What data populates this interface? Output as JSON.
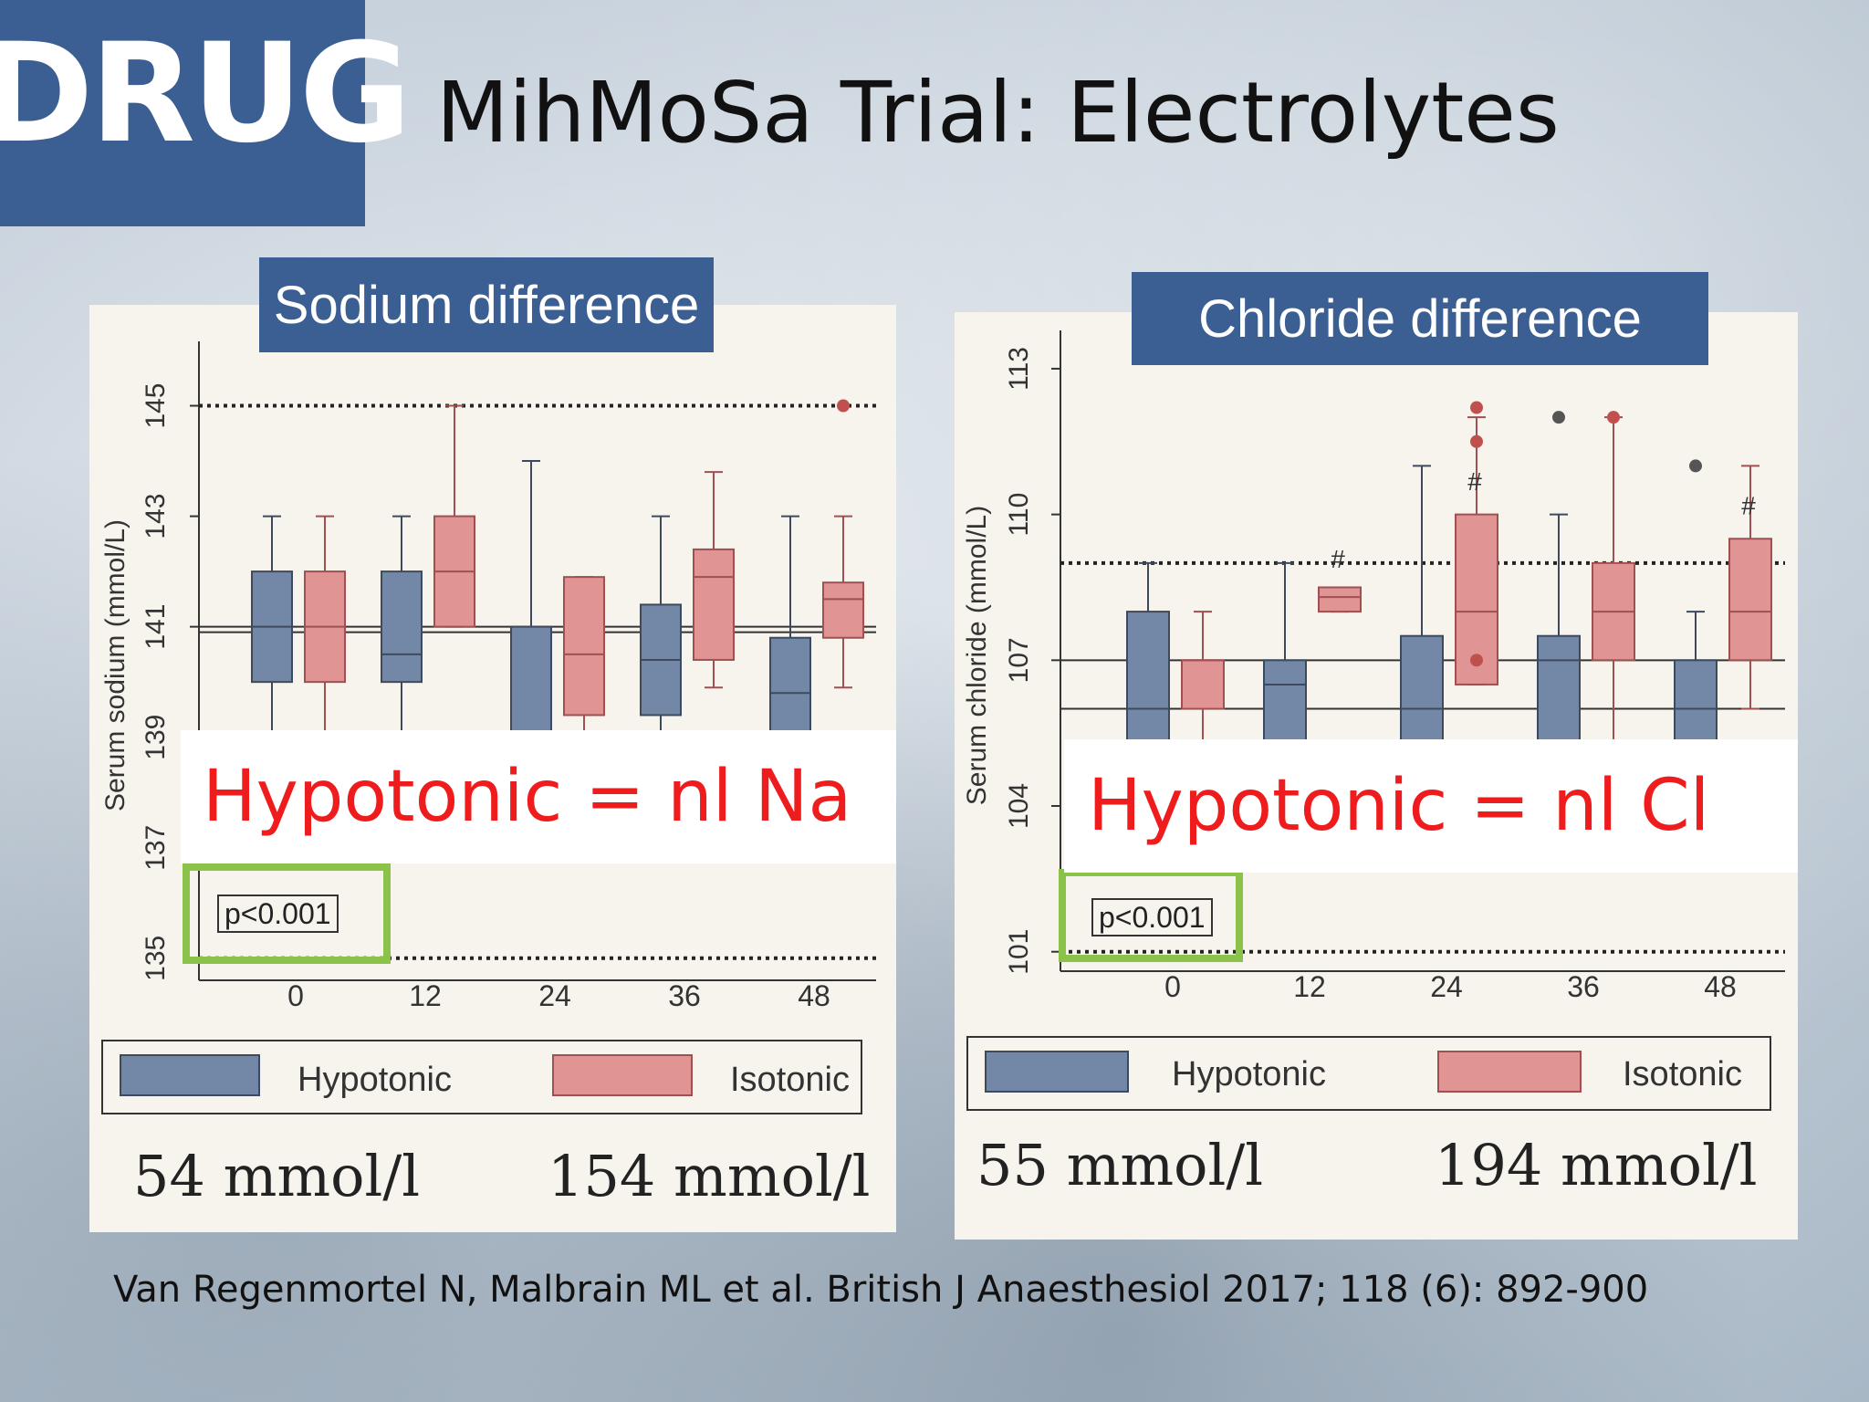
{
  "logo_text": "DRUG",
  "title": "MihMoSa Trial: Electrolytes",
  "citation": "Van Regenmortel N, Malbrain ML et al. British J Anaesthesiol 2017; 118 (6): 892-900",
  "colors": {
    "hypotonic": "#7388a6",
    "isotonic": "#e09494",
    "overlay_text": "#ee1c1c",
    "accent": "#3b5f92",
    "highlight": "#8bc34a"
  },
  "chart_data": [
    {
      "type": "box",
      "title": "Sodium difference",
      "ylabel": "Serum sodium (mmol/L)",
      "xlabel": "",
      "categories": [
        "0",
        "12",
        "24",
        "36",
        "48"
      ],
      "yticks": [
        "135",
        "137",
        "139",
        "141",
        "143",
        "145"
      ],
      "ylim": [
        134.6,
        146
      ],
      "reference_lines": [
        145,
        135
      ],
      "median_lines": [
        141.0,
        140.9
      ],
      "p_value": "p<0.001",
      "legend": [
        "Hypotonic",
        "Isotonic"
      ],
      "concentrations": [
        "54 mmol/l",
        "154 mmol/l"
      ],
      "annotation": "Hypotonic = nl Na",
      "series": [
        {
          "name": "Hypotonic",
          "boxes": [
            {
              "whislo": 139,
              "q1": 140,
              "med": 141,
              "q3": 142,
              "whishi": 143
            },
            {
              "whislo": 139,
              "q1": 140,
              "med": 140.5,
              "q3": 142,
              "whishi": 143
            },
            {
              "whislo": 137.8,
              "q1": 138,
              "med": 139,
              "q3": 141,
              "whishi": 144
            },
            {
              "whislo": 139,
              "q1": 139.4,
              "med": 140.4,
              "q3": 141.4,
              "whishi": 143
            },
            {
              "whislo": 137.5,
              "q1": 138.5,
              "med": 139.8,
              "q3": 140.8,
              "whishi": 143
            }
          ],
          "outliers": [
            [],
            [],
            [],
            [],
            []
          ]
        },
        {
          "name": "Isotonic",
          "boxes": [
            {
              "whislo": 139,
              "q1": 140,
              "med": 141,
              "q3": 142,
              "whishi": 143
            },
            {
              "whislo": 141,
              "q1": 141,
              "med": 142,
              "q3": 143,
              "whishi": 145
            },
            {
              "whislo": 137.8,
              "q1": 139.4,
              "med": 140.5,
              "q3": 141.9,
              "whishi": 141.9
            },
            {
              "whislo": 139.9,
              "q1": 140.4,
              "med": 141.9,
              "q3": 142.4,
              "whishi": 143.8
            },
            {
              "whislo": 139.9,
              "q1": 140.8,
              "med": 141.5,
              "q3": 141.8,
              "whishi": 143
            }
          ],
          "outliers": [
            [],
            [],
            [],
            [],
            [
              145
            ]
          ]
        }
      ]
    },
    {
      "type": "box",
      "title": "Chloride difference",
      "ylabel": "Serum chloride (mmol/L)",
      "xlabel": "",
      "categories": [
        "0",
        "12",
        "24",
        "36",
        "48"
      ],
      "yticks": [
        "101",
        "104",
        "107",
        "110",
        "113"
      ],
      "ylim": [
        100.6,
        113.6
      ],
      "reference_lines": [
        109,
        101
      ],
      "median_lines": [
        107,
        106
      ],
      "p_value": "p<0.001",
      "legend": [
        "Hypotonic",
        "Isotonic"
      ],
      "concentrations": [
        "55 mmol/l",
        "194 mmol/l"
      ],
      "annotation": "Hypotonic = nl Cl",
      "markers": [
        "#",
        "#",
        "#"
      ],
      "series": [
        {
          "name": "Hypotonic",
          "boxes": [
            {
              "whislo": 103,
              "q1": 104,
              "med": 106,
              "q3": 108,
              "whishi": 109
            },
            {
              "whislo": 103,
              "q1": 105,
              "med": 106.5,
              "q3": 107,
              "whishi": 109
            },
            {
              "whislo": 105,
              "q1": 105,
              "med": 106,
              "q3": 107.5,
              "whishi": 111
            },
            {
              "whislo": 105,
              "q1": 105,
              "med": 107,
              "q3": 107.5,
              "whishi": 110
            },
            {
              "whislo": 104,
              "q1": 104.5,
              "med": 106,
              "q3": 107,
              "whishi": 108
            }
          ],
          "outliers": [
            [],
            [],
            [],
            [
              112
            ],
            [
              111
            ]
          ]
        },
        {
          "name": "Isotonic",
          "boxes": [
            {
              "whislo": 105,
              "q1": 106,
              "med": 107,
              "q3": 107,
              "whishi": 108
            },
            {
              "whislo": 108,
              "q1": 108,
              "med": 108.3,
              "q3": 108.5,
              "whishi": 108.5
            },
            {
              "whislo": 106.5,
              "q1": 106.5,
              "med": 108,
              "q3": 110,
              "whishi": 112
            },
            {
              "whislo": 105,
              "q1": 107,
              "med": 108,
              "q3": 109,
              "whishi": 112
            },
            {
              "whislo": 106,
              "q1": 107,
              "med": 108,
              "q3": 109.5,
              "whishi": 111
            }
          ],
          "outliers": [
            [],
            [],
            [
              111.5,
              112.2,
              107,
              105
            ],
            [
              112
            ],
            []
          ]
        }
      ]
    }
  ]
}
